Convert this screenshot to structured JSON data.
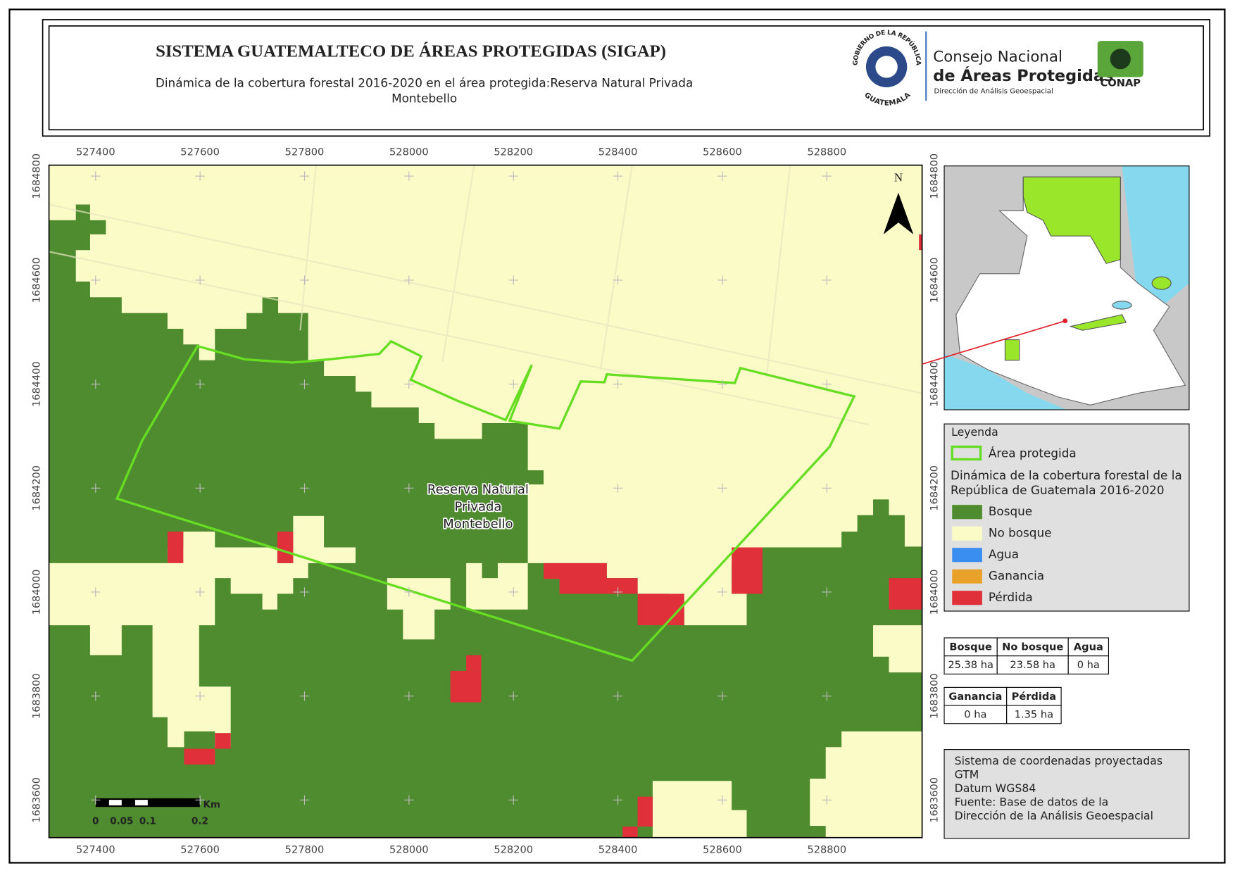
{
  "header": {
    "title": "SISTEMA GUATEMALTECO DE ÁREAS PROTEGIDAS  (SIGAP)",
    "subtitle": [
      "Dinámica de la cobertura forestal 2016-2020 en el área protegida:Reserva Natural Privada",
      "Montebello"
    ]
  },
  "logos": {
    "government": [
      "GOBIERNO DE LA REPÚBLICA",
      "GUATEMALA"
    ],
    "conap": [
      "Consejo Nacional",
      "de Áreas Protegidas",
      "Dirección de Análisis Geoespacial",
      "CONAP"
    ]
  },
  "map": {
    "xticks": [
      527400,
      527600,
      527800,
      528000,
      528200,
      528400,
      528600,
      528800
    ],
    "yticks": [
      1683600,
      1683800,
      1684000,
      1684200,
      1684400,
      1684600,
      1684800
    ],
    "north": "N",
    "label": [
      "Reserva Natural",
      "Privada",
      "Montebello"
    ],
    "scale_bar": {
      "ticks": [
        0,
        0.05,
        0.1,
        0.2
      ],
      "unit": "Km"
    }
  },
  "legend": {
    "title": "Leyenda",
    "boundary": {
      "label": "Área protegida",
      "color": "#66dd22"
    },
    "section": [
      "Dinámica de la cobertura forestal de la",
      "República de Guatemala 2016-2020"
    ],
    "classes": [
      {
        "label": "Bosque",
        "color": "#4e8c2f"
      },
      {
        "label": "No bosque",
        "color": "#fbfbc8"
      },
      {
        "label": "Agua",
        "color": "#3a8ef0"
      },
      {
        "label": "Ganancia",
        "color": "#e8a22a"
      },
      {
        "label": "Pérdida",
        "color": "#e0303a"
      }
    ]
  },
  "stats": [
    {
      "headers": [
        "Bosque",
        "No bosque",
        "Agua"
      ],
      "values": [
        "25.38 ha",
        "23.58 ha",
        "0 ha"
      ]
    },
    {
      "headers": [
        "Ganancia",
        "Pérdida"
      ],
      "values": [
        "0 ha",
        "1.35 ha"
      ]
    }
  ],
  "notes": [
    "Sistema de coordenadas proyectadas",
    "GTM",
    "Datum WGS84",
    "Fuente: Base de datos de la",
    "Dirección de la Análisis Geoespacial"
  ]
}
